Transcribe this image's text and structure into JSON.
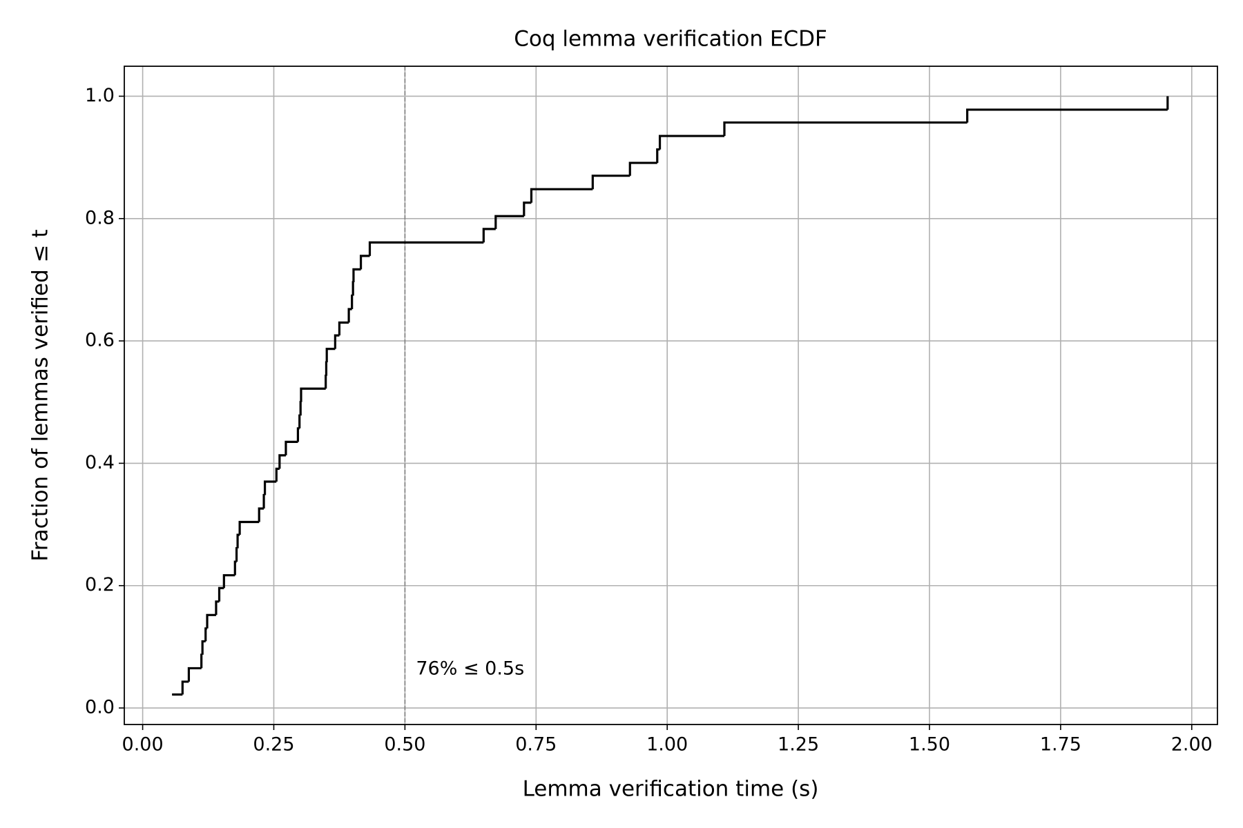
{
  "chart_data": {
    "type": "ecdf",
    "title": "Coq lemma verification ECDF",
    "x_label": "Lemma verification time (s)",
    "y_label": "Fraction of lemmas verified ≤ t",
    "x": [
      0.056,
      0.076,
      0.088,
      0.112,
      0.114,
      0.12,
      0.123,
      0.14,
      0.146,
      0.155,
      0.176,
      0.179,
      0.181,
      0.185,
      0.222,
      0.231,
      0.233,
      0.255,
      0.261,
      0.273,
      0.296,
      0.299,
      0.301,
      0.302,
      0.349,
      0.35,
      0.351,
      0.367,
      0.375,
      0.393,
      0.399,
      0.401,
      0.402,
      0.416,
      0.433,
      0.65,
      0.673,
      0.727,
      0.741,
      0.858,
      0.929,
      0.981,
      0.986,
      1.109,
      1.572,
      1.954
    ],
    "series": [
      {
        "color": "#000000",
        "values": [
          0.022,
          0.043,
          0.065,
          0.087,
          0.109,
          0.13,
          0.152,
          0.174,
          0.196,
          0.217,
          0.239,
          0.261,
          0.283,
          0.304,
          0.326,
          0.348,
          0.37,
          0.391,
          0.413,
          0.435,
          0.457,
          0.478,
          0.5,
          0.522,
          0.543,
          0.565,
          0.587,
          0.609,
          0.63,
          0.652,
          0.674,
          0.696,
          0.717,
          0.739,
          0.761,
          0.783,
          0.804,
          0.826,
          0.848,
          0.87,
          0.891,
          0.913,
          0.935,
          0.957,
          0.978,
          1.0
        ]
      }
    ],
    "vline": {
      "x": 0.5,
      "color": "#808080",
      "annotation": "76% ≤ 0.5s"
    },
    "xlim": [
      -0.035,
      2.049
    ],
    "ylim": [
      -0.027,
      1.049
    ],
    "xticks": [
      {
        "value": 0,
        "label": "0.00"
      },
      0.25,
      {
        "value": 0.5,
        "label": "0.50"
      },
      0.75,
      {
        "value": 1,
        "label": "1.00"
      },
      1.25,
      {
        "value": 1.5,
        "label": "1.50"
      },
      1.75,
      {
        "value": 2,
        "label": "2.00"
      }
    ],
    "yticks": [
      {
        "value": 0,
        "label": "0.0"
      },
      0.2,
      0.4,
      0.6,
      0.8,
      {
        "value": 1,
        "label": "1.0"
      }
    ],
    "grid": true
  }
}
